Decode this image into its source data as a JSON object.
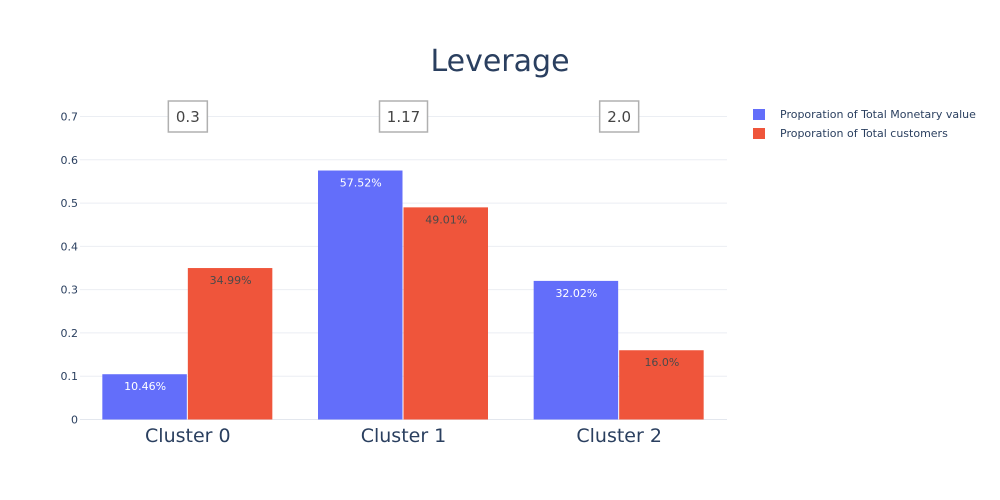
{
  "chart_data": {
    "type": "bar",
    "title": "Leverage",
    "categories": [
      "Cluster 0",
      "Cluster 1",
      "Cluster 2"
    ],
    "series": [
      {
        "name": "Proporation of Total Monetary value",
        "color": "#636efa",
        "label_color": "#ffffff",
        "values": [
          0.1046,
          0.5752,
          0.3202
        ],
        "labels": [
          "10.46%",
          "57.52%",
          "32.02%"
        ]
      },
      {
        "name": "Proporation of Total customers",
        "color": "#ef553b",
        "label_color": "#4a4a4a",
        "values": [
          0.3499,
          0.4901,
          0.16
        ],
        "labels": [
          "34.99%",
          "49.01%",
          "16.0%"
        ]
      }
    ],
    "annotations": [
      "0.3",
      "1.17",
      "2.0"
    ],
    "ylim": [
      0,
      0.7
    ],
    "yticks": [
      "0",
      "0.1",
      "0.2",
      "0.3",
      "0.4",
      "0.5",
      "0.6",
      "0.7"
    ],
    "ytick_values": [
      0,
      0.1,
      0.2,
      0.3,
      0.4,
      0.5,
      0.6,
      0.7
    ],
    "grid": true,
    "legend_position": "top-right"
  }
}
